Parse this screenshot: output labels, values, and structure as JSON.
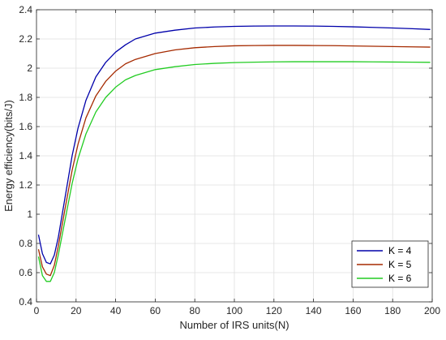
{
  "chart_data": {
    "type": "line",
    "title": "",
    "xlabel": "Number of IRS units(N)",
    "ylabel": "Energy efficiency(bits/J)",
    "xlim": [
      0,
      200
    ],
    "ylim": [
      0.4,
      2.4
    ],
    "xticks": [
      0,
      20,
      40,
      60,
      80,
      100,
      120,
      140,
      160,
      180,
      200
    ],
    "yticks": [
      0.4,
      0.6,
      0.8,
      1,
      1.2,
      1.4,
      1.6,
      1.8,
      2,
      2.2,
      2.4
    ],
    "xtick_labels": [
      "0",
      "20",
      "40",
      "60",
      "80",
      "100",
      "120",
      "140",
      "160",
      "180",
      "200"
    ],
    "ytick_labels": [
      "0.4",
      "0.6",
      "0.8",
      "1",
      "1.2",
      "1.4",
      "1.6",
      "1.8",
      "2",
      "2.2",
      "2.4"
    ],
    "grid": true,
    "legend_position": "bottom-right",
    "series": [
      {
        "name": "K = 4",
        "color": "#0000aa",
        "x": [
          1,
          3,
          5,
          7,
          9,
          11,
          13,
          15,
          18,
          21,
          25,
          30,
          35,
          40,
          45,
          50,
          60,
          70,
          80,
          90,
          100,
          110,
          120,
          130,
          140,
          150,
          160,
          170,
          180,
          190,
          199
        ],
        "y": [
          0.86,
          0.73,
          0.67,
          0.66,
          0.72,
          0.84,
          1.0,
          1.16,
          1.4,
          1.59,
          1.78,
          1.94,
          2.04,
          2.11,
          2.16,
          2.2,
          2.24,
          2.26,
          2.275,
          2.282,
          2.286,
          2.288,
          2.289,
          2.289,
          2.288,
          2.286,
          2.283,
          2.279,
          2.275,
          2.27,
          2.265
        ]
      },
      {
        "name": "K = 5",
        "color": "#a52a00",
        "x": [
          1,
          3,
          5,
          7,
          9,
          11,
          13,
          15,
          18,
          21,
          25,
          30,
          35,
          40,
          45,
          50,
          60,
          70,
          80,
          90,
          100,
          110,
          120,
          130,
          140,
          150,
          160,
          170,
          180,
          190,
          199
        ],
        "y": [
          0.76,
          0.64,
          0.59,
          0.58,
          0.65,
          0.78,
          0.93,
          1.08,
          1.3,
          1.48,
          1.66,
          1.81,
          1.91,
          1.98,
          2.03,
          2.06,
          2.1,
          2.125,
          2.14,
          2.148,
          2.153,
          2.155,
          2.156,
          2.156,
          2.155,
          2.154,
          2.152,
          2.15,
          2.148,
          2.146,
          2.144
        ]
      },
      {
        "name": "K = 6",
        "color": "#22cc22",
        "x": [
          1,
          3,
          5,
          7,
          9,
          11,
          13,
          15,
          18,
          21,
          25,
          30,
          35,
          40,
          45,
          50,
          60,
          70,
          80,
          90,
          100,
          110,
          120,
          130,
          140,
          150,
          160,
          170,
          180,
          190,
          199
        ],
        "y": [
          0.71,
          0.58,
          0.54,
          0.54,
          0.6,
          0.72,
          0.86,
          1.0,
          1.21,
          1.38,
          1.55,
          1.7,
          1.8,
          1.87,
          1.92,
          1.95,
          1.99,
          2.01,
          2.025,
          2.033,
          2.038,
          2.041,
          2.043,
          2.044,
          2.044,
          2.044,
          2.044,
          2.043,
          2.042,
          2.041,
          2.04
        ]
      }
    ]
  }
}
